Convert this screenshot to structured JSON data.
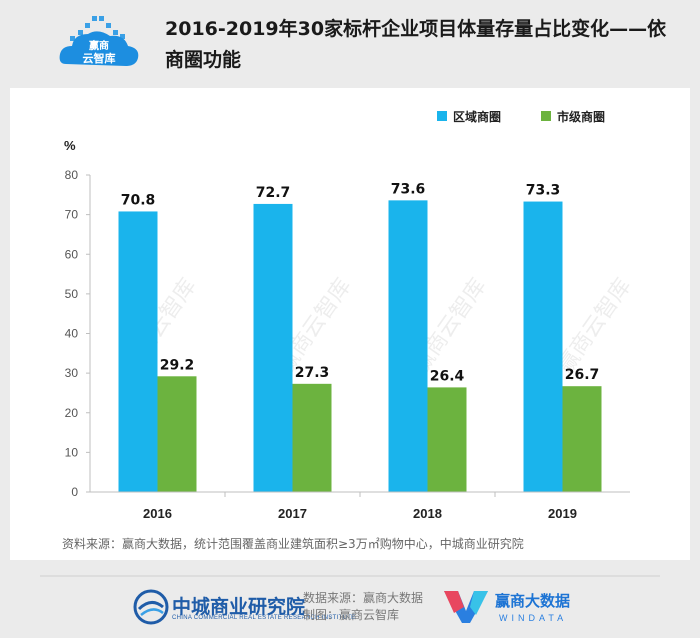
{
  "logo": {
    "text_line1": "赢商",
    "text_line2": "云智库"
  },
  "title": "2016-2019年30家标杆企业项目体量存量占比变化——依商圈功能",
  "chart_data": {
    "type": "bar",
    "categories": [
      "2016",
      "2017",
      "2018",
      "2019"
    ],
    "series": [
      {
        "name": "区域商圈",
        "values": [
          70.8,
          72.7,
          73.6,
          73.3
        ],
        "color": "#1ab4ec"
      },
      {
        "name": "市级商圈",
        "values": [
          29.2,
          27.3,
          26.4,
          26.7
        ],
        "color": "#6cb33f"
      }
    ],
    "ylabel": "%",
    "ylim": [
      0,
      80
    ],
    "yticks": [
      0,
      10,
      20,
      30,
      40,
      50,
      60,
      70,
      80
    ],
    "grid": false,
    "legend_position": "top-right",
    "watermark": "赢商云智库"
  },
  "source": "资料来源：赢商大数据，统计范围覆盖商业建筑面积≥3万㎡购物中心，中城商业研究院",
  "footer": {
    "org_name": "中城商业研究院",
    "org_en": "CHINA COMMERCIAL REAL ESTATE RESEARCH INSTITUTE",
    "data_source": "数据来源：赢商大数据",
    "made_by": "制图：赢商云智库",
    "windata_cn": "赢商大数据",
    "windata_en": "WINDATA"
  }
}
